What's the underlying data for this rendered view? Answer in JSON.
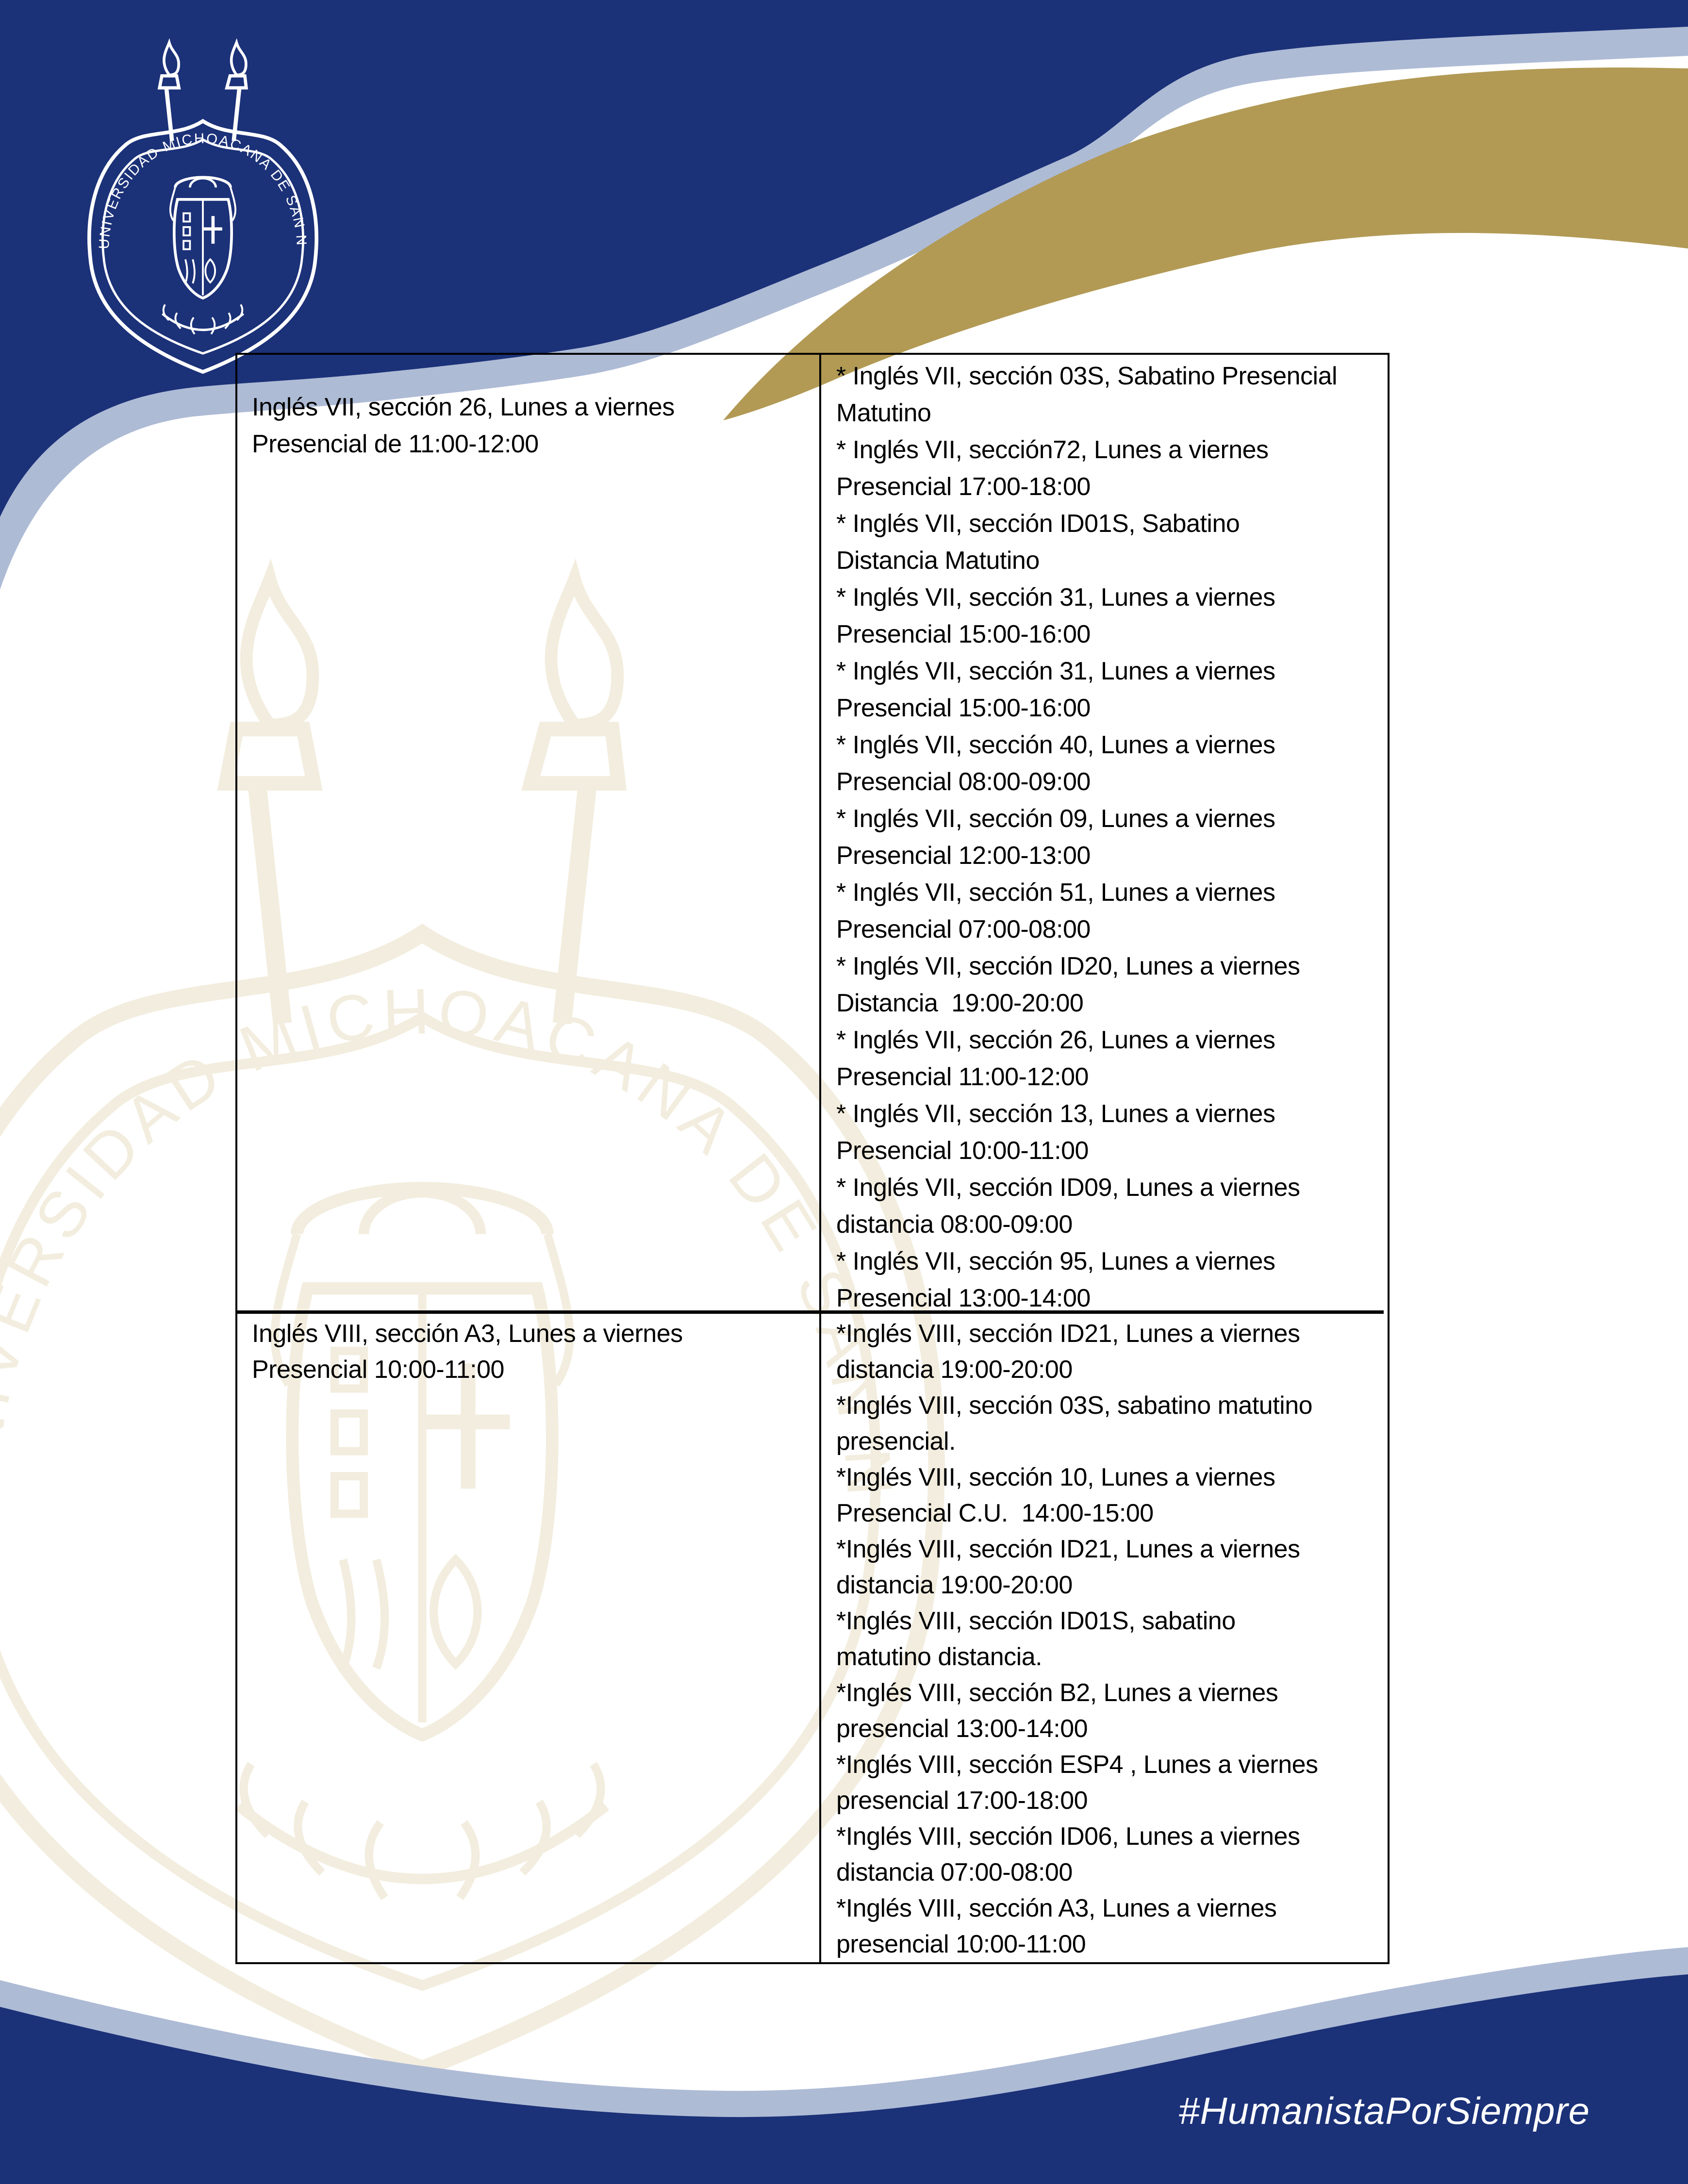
{
  "page": {
    "kind": "course-schedule-document",
    "colors": {
      "navy": "#1b3178",
      "silver": "#aebbd5",
      "gold": "#b29a55",
      "watermark_beige": "#f2edde",
      "table_border": "#000000",
      "text": "#000000",
      "footer_text": "#ffffff"
    }
  },
  "header": {
    "seal_text": "UNIVERSIDAD MICHOACANA DE SAN NICOLAS DE HIDALGO"
  },
  "table": {
    "rows": [
      {
        "left_lines": [
          "Inglés VII, sección 26, Lunes a viernes",
          "Presencial de 11:00-12:00"
        ],
        "right_lines": [
          "* Inglés VII, sección 03S, Sabatino Presencial",
          "Matutino",
          "* Inglés VII, sección72, Lunes a viernes",
          "Presencial 17:00-18:00",
          "* Inglés VII, sección ID01S, Sabatino",
          "Distancia Matutino",
          "* Inglés VII, sección 31, Lunes a viernes",
          "Presencial 15:00-16:00",
          "* Inglés VII, sección 31, Lunes a viernes",
          "Presencial 15:00-16:00",
          "* Inglés VII, sección 40, Lunes a viernes",
          "Presencial 08:00-09:00",
          "* Inglés VII, sección 09, Lunes a viernes",
          "Presencial 12:00-13:00",
          "* Inglés VII, sección 51, Lunes a viernes",
          "Presencial 07:00-08:00",
          "* Inglés VII, sección ID20, Lunes a viernes",
          "Distancia  19:00-20:00",
          "* Inglés VII, sección 26, Lunes a viernes",
          "Presencial 11:00-12:00",
          "* Inglés VII, sección 13, Lunes a viernes",
          "Presencial 10:00-11:00",
          "* Inglés VII, sección ID09, Lunes a viernes",
          "distancia 08:00-09:00",
          "* Inglés VII, sección 95, Lunes a viernes",
          "Presencial 13:00-14:00"
        ]
      },
      {
        "left_lines": [
          "Inglés VIII, sección A3, Lunes a viernes",
          "Presencial 10:00-11:00"
        ],
        "right_lines": [
          "*Inglés VIII, sección ID21, Lunes a viernes",
          "distancia 19:00-20:00",
          "*Inglés VIII, sección 03S, sabatino matutino",
          "presencial.",
          "*Inglés VIII, sección 10, Lunes a viernes",
          "Presencial C.U.  14:00-15:00",
          "*Inglés VIII, sección ID21, Lunes a viernes",
          "distancia 19:00-20:00",
          "*Inglés VIII, sección ID01S, sabatino",
          "matutino distancia.",
          "*Inglés VIII, sección B2, Lunes a viernes",
          "presencial 13:00-14:00",
          "*Inglés VIII, sección ESP4 , Lunes a viernes",
          "presencial 17:00-18:00",
          "*Inglés VIII, sección ID06, Lunes a viernes",
          "distancia 07:00-08:00",
          "*Inglés VIII, sección A3, Lunes a viernes",
          "presencial 10:00-11:00"
        ]
      }
    ]
  },
  "footer": {
    "hashtag": "#HumanistaPorSiempre"
  }
}
